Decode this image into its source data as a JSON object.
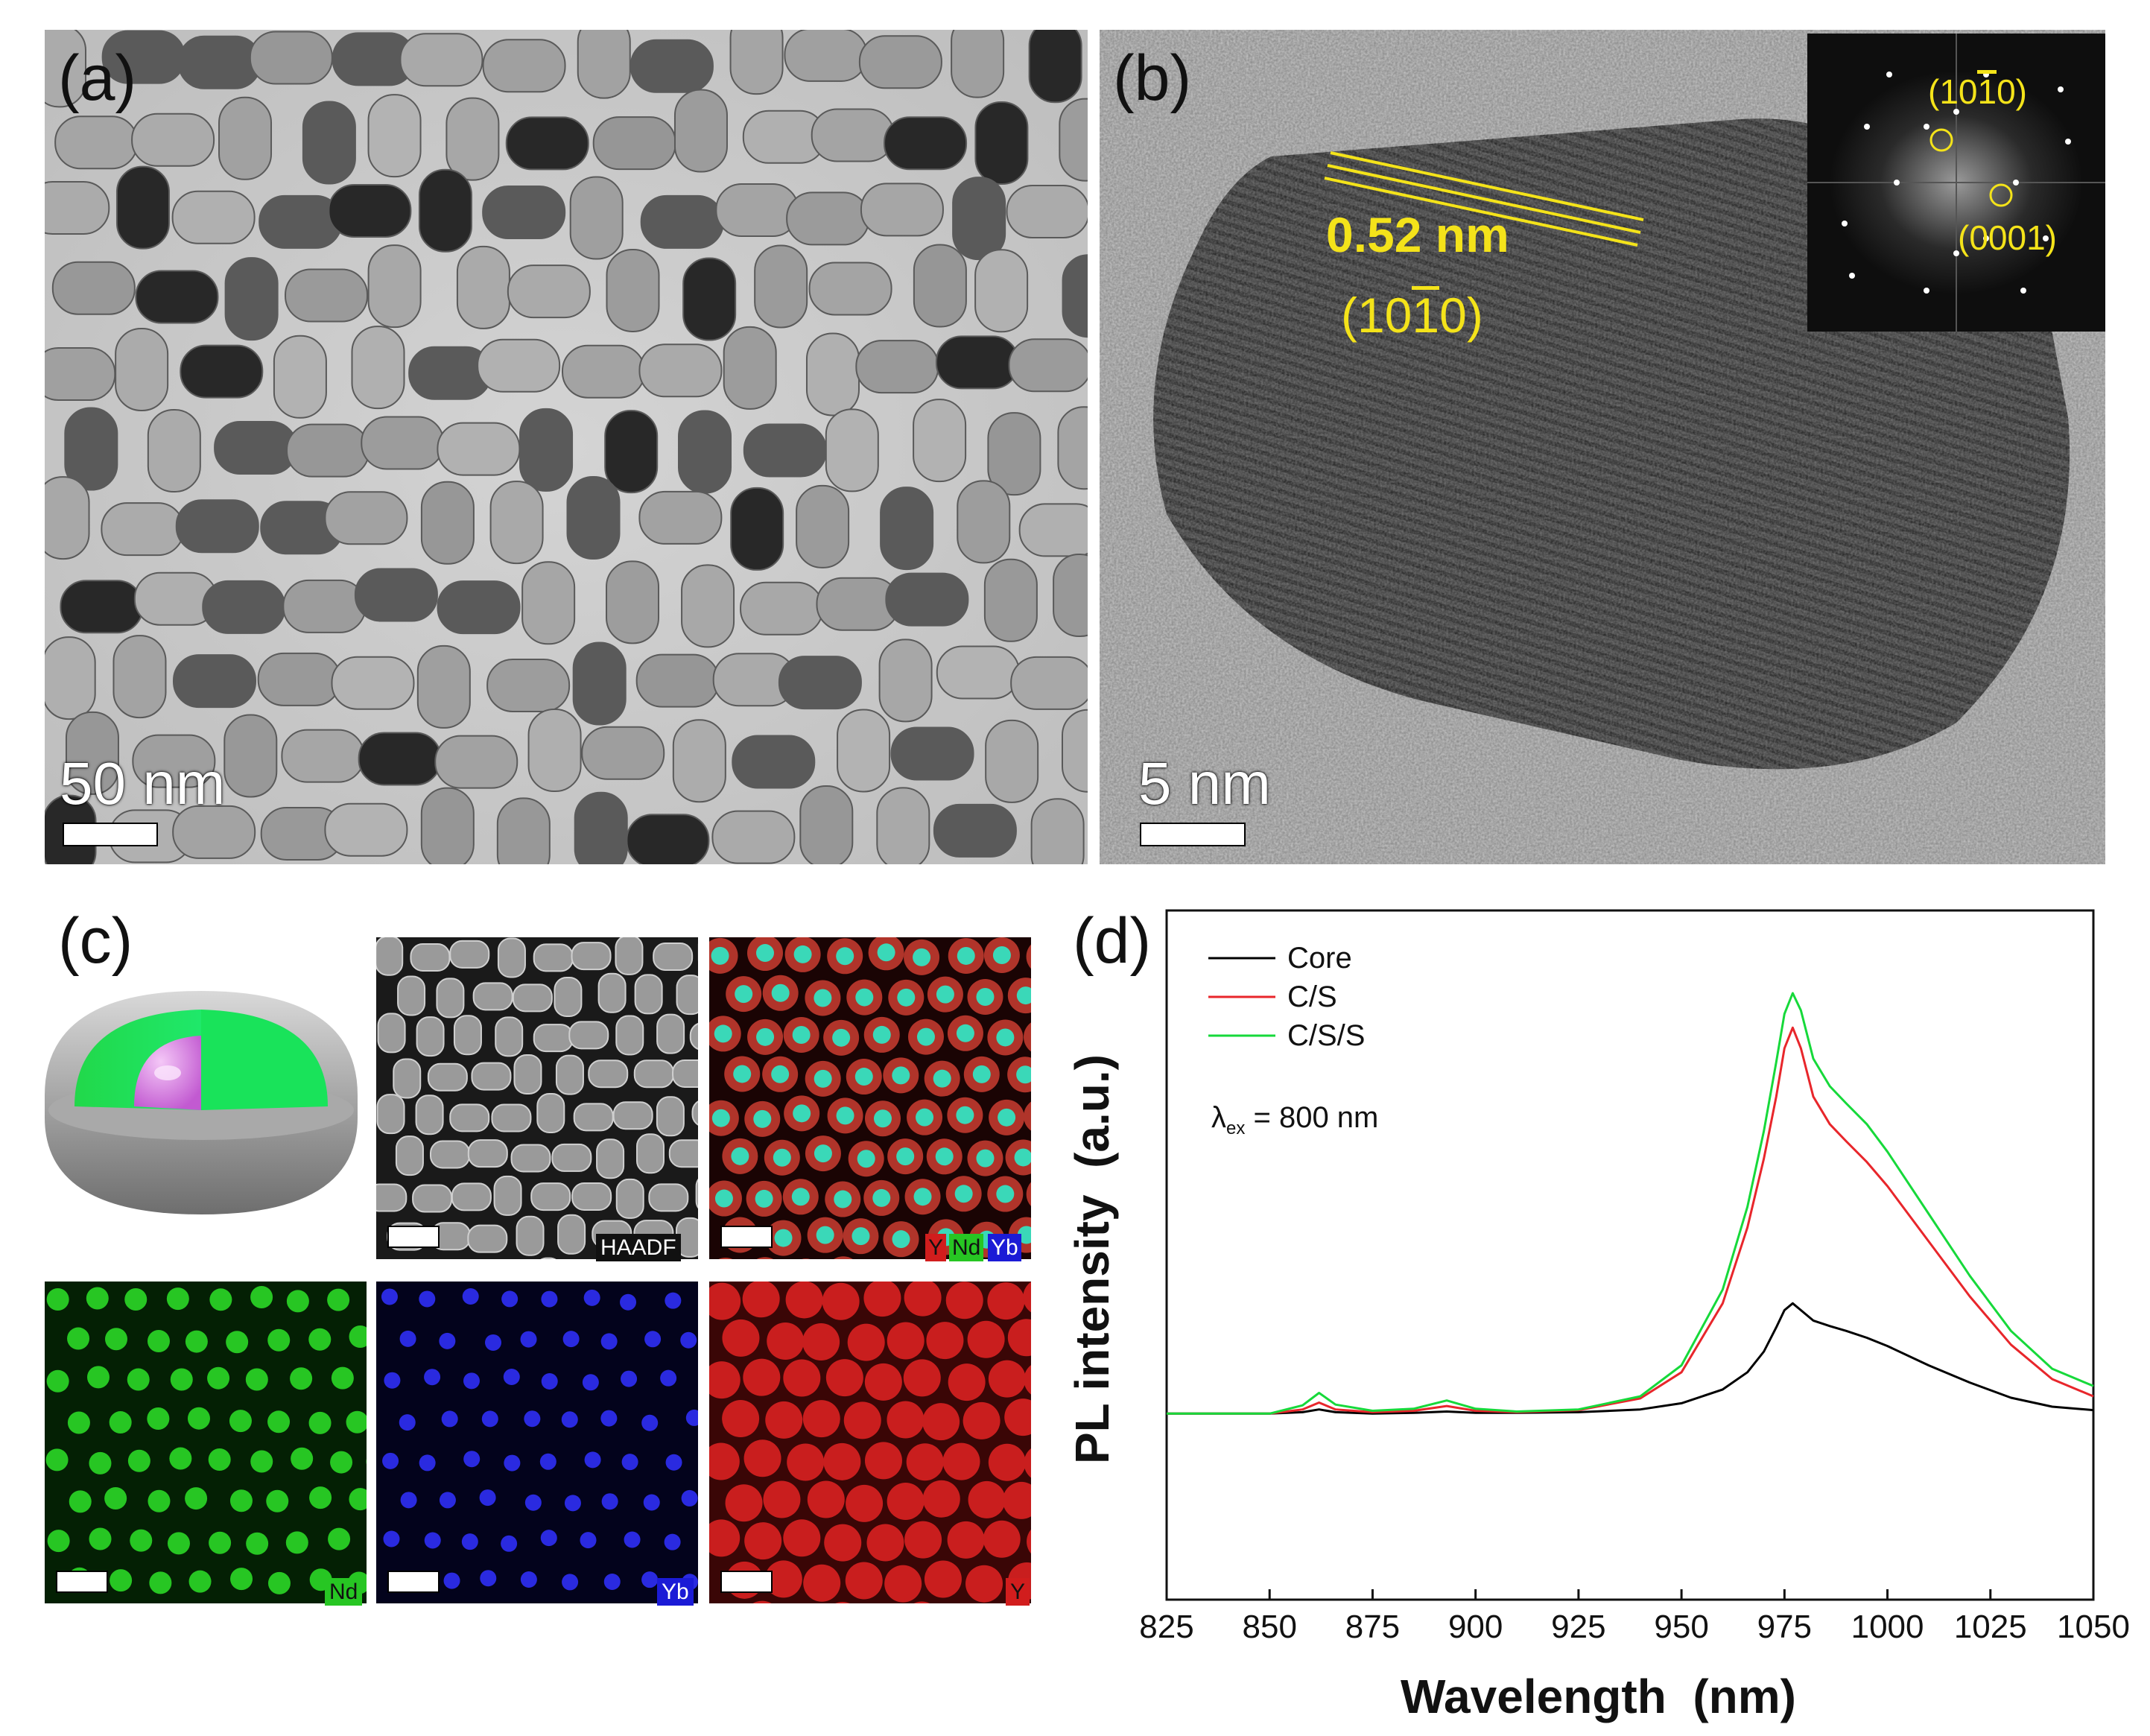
{
  "panels": {
    "a": {
      "label": "(a)",
      "scale_text": "50 nm"
    },
    "b": {
      "label": "(b)",
      "scale_text": "5 nm",
      "spacing_text": "0.52 nm",
      "plane_text": "(10",
      "plane_bar_digit": "1",
      "plane_end": "0)",
      "fft_label_1_pre": "(10",
      "fft_label_1_bar": "1",
      "fft_label_1_post": "0)",
      "fft_label_2": "(0001)"
    },
    "c": {
      "label": "(c)",
      "haadf_tag": "HAADF",
      "overlay_tags": [
        "Y",
        "Nd",
        "Yb"
      ],
      "nd_tag": "Nd",
      "yb_tag": "Yb",
      "y_tag": "Y"
    },
    "d": {
      "label": "(d)"
    }
  },
  "colors": {
    "core": "#000000",
    "cs": "#e8262b",
    "css": "#16d93a",
    "yellow": "#f4e31a",
    "nd_green": "#27c623",
    "yb_blue": "#1b1bd6",
    "y_red": "#d11d1d"
  },
  "chart_data": {
    "type": "line",
    "xlabel": "Wavelength  (nm)",
    "ylabel": "PL intensity  (a.u.)",
    "xlim": [
      825,
      1050
    ],
    "ylim": [
      0,
      1
    ],
    "xticks": [
      "825",
      "850",
      "875",
      "900",
      "925",
      "950",
      "975",
      "1000",
      "1025",
      "1050"
    ],
    "annotation_main": "λ",
    "annotation_sub": "ex",
    "annotation_rest": " = 800 nm",
    "legend": [
      "Core",
      "C/S",
      "C/S/S"
    ],
    "series": [
      {
        "name": "Core",
        "x": [
          825,
          850,
          858,
          862,
          866,
          875,
          885,
          893,
          900,
          910,
          925,
          940,
          950,
          960,
          966,
          970,
          973,
          975,
          977,
          979,
          982,
          986,
          990,
          995,
          1000,
          1010,
          1020,
          1030,
          1040,
          1050
        ],
        "y": [
          0.27,
          0.27,
          0.272,
          0.276,
          0.272,
          0.27,
          0.271,
          0.273,
          0.271,
          0.271,
          0.272,
          0.276,
          0.285,
          0.305,
          0.33,
          0.36,
          0.395,
          0.42,
          0.43,
          0.42,
          0.405,
          0.397,
          0.39,
          0.38,
          0.368,
          0.34,
          0.315,
          0.293,
          0.28,
          0.275
        ]
      },
      {
        "name": "C/S",
        "x": [
          825,
          850,
          858,
          862,
          866,
          875,
          885,
          893,
          900,
          910,
          925,
          940,
          950,
          960,
          966,
          970,
          973,
          975,
          977,
          979,
          982,
          986,
          990,
          995,
          1000,
          1010,
          1020,
          1030,
          1040,
          1050
        ],
        "y": [
          0.27,
          0.27,
          0.276,
          0.286,
          0.276,
          0.272,
          0.274,
          0.281,
          0.274,
          0.272,
          0.275,
          0.292,
          0.33,
          0.43,
          0.54,
          0.64,
          0.73,
          0.8,
          0.83,
          0.8,
          0.73,
          0.69,
          0.665,
          0.635,
          0.6,
          0.52,
          0.44,
          0.37,
          0.32,
          0.295
        ]
      },
      {
        "name": "C/S/S",
        "x": [
          825,
          850,
          858,
          862,
          866,
          875,
          885,
          893,
          900,
          910,
          925,
          940,
          950,
          960,
          966,
          970,
          973,
          975,
          977,
          979,
          982,
          986,
          990,
          995,
          1000,
          1010,
          1020,
          1030,
          1040,
          1050
        ],
        "y": [
          0.27,
          0.27,
          0.282,
          0.3,
          0.283,
          0.274,
          0.277,
          0.289,
          0.277,
          0.273,
          0.276,
          0.295,
          0.34,
          0.45,
          0.57,
          0.68,
          0.78,
          0.85,
          0.88,
          0.855,
          0.785,
          0.745,
          0.72,
          0.69,
          0.65,
          0.56,
          0.47,
          0.39,
          0.335,
          0.31
        ]
      }
    ]
  }
}
